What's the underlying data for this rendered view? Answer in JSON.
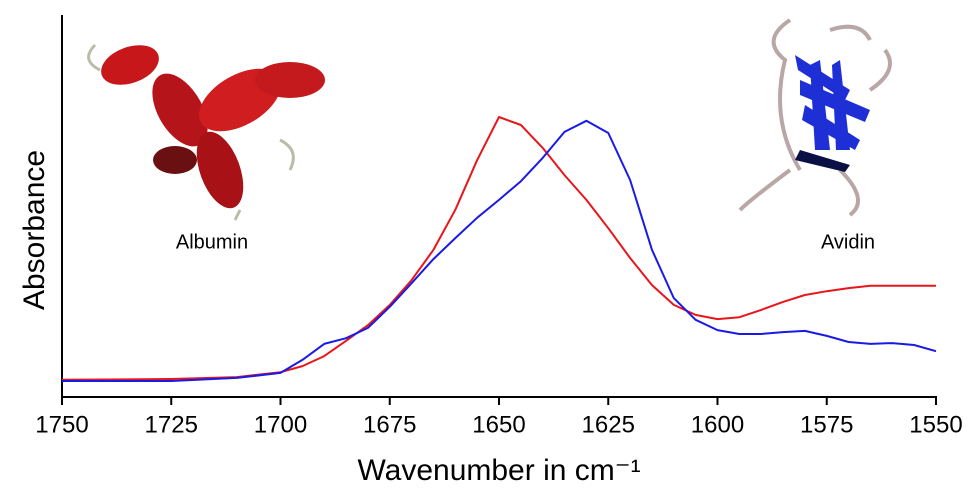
{
  "chart_data": {
    "type": "line",
    "x_label": "Wavenumber in cm⁻¹",
    "y_label": "Absorbance",
    "x": [
      1750,
      1725,
      1710,
      1700,
      1695,
      1690,
      1685,
      1680,
      1675,
      1670,
      1665,
      1660,
      1655,
      1650,
      1645,
      1640,
      1635,
      1630,
      1625,
      1620,
      1615,
      1610,
      1605,
      1600,
      1595,
      1590,
      1585,
      1580,
      1575,
      1570,
      1565,
      1560,
      1555,
      1550
    ],
    "series": [
      {
        "name": "Albumin",
        "color": "#e8161a",
        "values": [
          4.5,
          4.7,
          5.2,
          6.5,
          8.1,
          10.7,
          14.7,
          18.8,
          24.1,
          30.6,
          38.5,
          49.0,
          62.0,
          73.3,
          71.2,
          65.2,
          58.1,
          51.6,
          44.2,
          36.4,
          29.3,
          24.1,
          21.5,
          20.4,
          20.9,
          22.8,
          24.9,
          26.7,
          27.7,
          28.5,
          29.1,
          29.1,
          29.1,
          29.1
        ]
      },
      {
        "name": "Avidin",
        "color": "#1a1ae6",
        "values": [
          4.2,
          4.2,
          5.0,
          6.3,
          9.7,
          13.9,
          15.4,
          18.1,
          23.6,
          29.8,
          36.1,
          41.6,
          46.9,
          51.6,
          56.5,
          62.6,
          69.4,
          72.3,
          69.1,
          56.8,
          38.5,
          25.9,
          20.2,
          17.5,
          16.5,
          16.5,
          17.0,
          17.3,
          16.0,
          14.4,
          13.9,
          14.1,
          13.6,
          12.0
        ]
      }
    ],
    "xlim": [
      1750,
      1550
    ],
    "ylim": [
      0,
      100
    ],
    "xticks": [
      1750,
      1725,
      1700,
      1675,
      1650,
      1625,
      1600,
      1575,
      1550
    ]
  }
}
